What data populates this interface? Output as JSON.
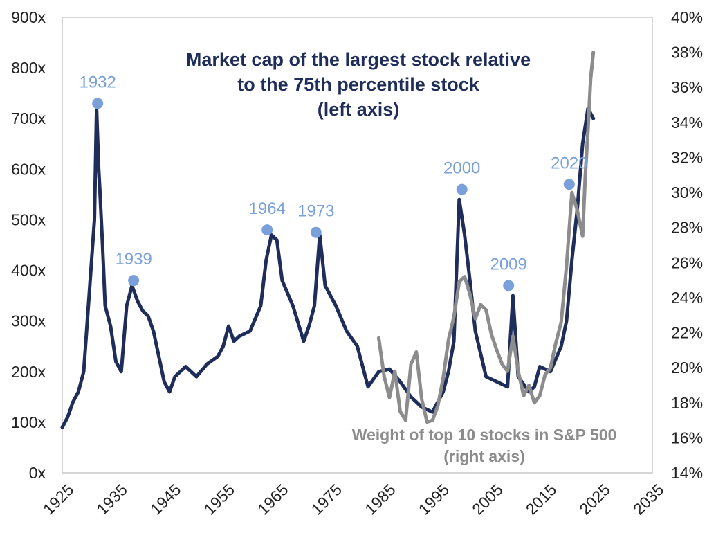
{
  "chart_data": {
    "type": "line",
    "title_lines": [
      "Market cap of the largest stock relative",
      "to the 75th percentile stock",
      "(left axis)"
    ],
    "series2_label_lines": [
      "Weight of top 10 stocks in S&P 500",
      "(right axis)"
    ],
    "xlim": [
      1925,
      2035
    ],
    "ylim": [
      0,
      900
    ],
    "y2lim": [
      14,
      40
    ],
    "x_ticks": [
      "1925",
      "1935",
      "1945",
      "1955",
      "1965",
      "1975",
      "1985",
      "1995",
      "2005",
      "2015",
      "2025",
      "2035"
    ],
    "y_ticks": [
      "0x",
      "100x",
      "200x",
      "300x",
      "400x",
      "500x",
      "600x",
      "700x",
      "800x",
      "900x"
    ],
    "y2_ticks": [
      "14%",
      "16%",
      "18%",
      "20%",
      "22%",
      "24%",
      "26%",
      "28%",
      "30%",
      "32%",
      "34%",
      "36%",
      "38%",
      "40%"
    ],
    "grid": false,
    "colors": {
      "series1": "#1f2d5a",
      "series2": "#8c8c8c",
      "markers": "#7aa0dc",
      "title": "#1f2d5a"
    },
    "series": [
      {
        "axis": "left",
        "x": [
          1925,
          1926,
          1927,
          1928,
          1929,
          1930,
          1931,
          1931.4,
          1931.8,
          1932,
          1932.5,
          1933,
          1934,
          1935,
          1936,
          1937,
          1938,
          1939,
          1940,
          1941,
          1942,
          1943,
          1944,
          1945,
          1946,
          1947,
          1948,
          1950,
          1952,
          1954,
          1955,
          1956,
          1957,
          1958,
          1960,
          1962,
          1963,
          1964,
          1965,
          1966,
          1968,
          1970,
          1971,
          1972,
          1973,
          1974,
          1976,
          1978,
          1980,
          1982,
          1984,
          1986,
          1988,
          1990,
          1992,
          1994,
          1996,
          1997,
          1998,
          1999,
          2000,
          2001,
          2002,
          2004,
          2006,
          2008,
          2009,
          2010,
          2012,
          2013,
          2014,
          2016,
          2018,
          2019,
          2020,
          2021,
          2022,
          2023,
          2024
        ],
        "values": [
          90,
          110,
          140,
          160,
          200,
          350,
          500,
          720,
          600,
          560,
          450,
          330,
          290,
          220,
          200,
          330,
          370,
          340,
          320,
          310,
          280,
          230,
          180,
          160,
          190,
          200,
          210,
          190,
          215,
          230,
          250,
          290,
          260,
          270,
          280,
          330,
          420,
          470,
          460,
          380,
          330,
          260,
          290,
          330,
          470,
          370,
          330,
          280,
          250,
          170,
          200,
          205,
          180,
          150,
          130,
          120,
          160,
          200,
          260,
          540,
          470,
          380,
          280,
          190,
          180,
          170,
          350,
          190,
          160,
          170,
          210,
          200,
          250,
          300,
          420,
          520,
          650,
          720,
          700
        ]
      },
      {
        "axis": "right",
        "x": [
          1984,
          1985,
          1986,
          1987,
          1988,
          1989,
          1990,
          1991,
          1992,
          1993,
          1994,
          1995,
          1996,
          1997,
          1998,
          1999,
          2000,
          2001,
          2002,
          2003,
          2004,
          2005,
          2006,
          2007,
          2008,
          2009,
          2010,
          2011,
          2012,
          2013,
          2014,
          2015,
          2016,
          2017,
          2018,
          2019,
          2020,
          2021,
          2022,
          2022.5,
          2023,
          2023.5,
          2024
        ],
        "values": [
          21.7,
          19.5,
          18.3,
          19.8,
          17.5,
          17.0,
          20.2,
          20.9,
          18.2,
          16.9,
          17.0,
          17.8,
          19.4,
          21.6,
          22.9,
          24.9,
          25.2,
          24.2,
          22.8,
          23.6,
          23.3,
          21.9,
          21.0,
          20.2,
          19.8,
          21.8,
          19.8,
          18.4,
          19.0,
          18.0,
          18.4,
          19.6,
          20.0,
          21.4,
          22.6,
          25.8,
          30.0,
          29.0,
          27.5,
          31.0,
          33.5,
          36.5,
          38.0
        ]
      }
    ],
    "annotations": [
      {
        "label": "1932",
        "x": 1931.6,
        "y": 730
      },
      {
        "label": "1939",
        "x": 1938.3,
        "y": 380
      },
      {
        "label": "1964",
        "x": 1963.2,
        "y": 480
      },
      {
        "label": "1973",
        "x": 1972.3,
        "y": 475
      },
      {
        "label": "2000",
        "x": 1999.5,
        "y": 560
      },
      {
        "label": "2009",
        "x": 2008.2,
        "y": 370
      },
      {
        "label": "2020",
        "x": 2019.5,
        "y": 570
      }
    ]
  }
}
